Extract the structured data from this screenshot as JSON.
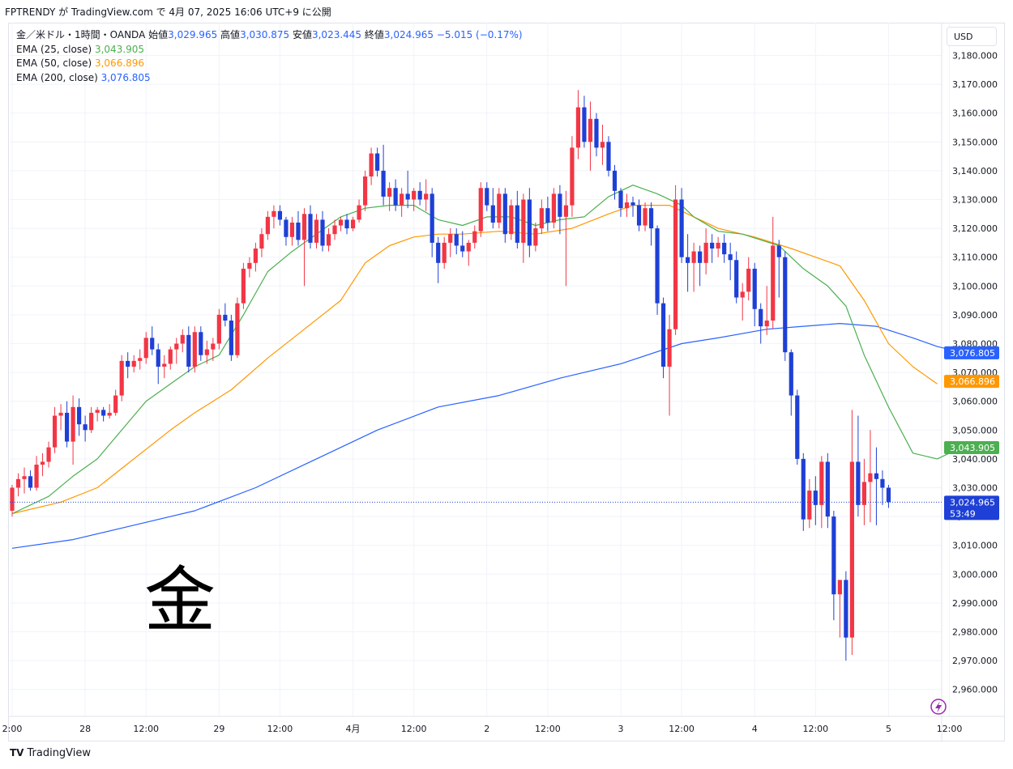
{
  "header": {
    "text": "FPTRENDY が TradingView.com で 4月 07, 2025 16:06 UTC+9 に公開"
  },
  "legend": {
    "symbol": "金／米ドル・1時間・OANDA",
    "open_label": "始値",
    "open": "3,029.965",
    "high_label": "高値",
    "high": "3,030.875",
    "low_label": "安値",
    "low": "3,023.445",
    "close_label": "終値",
    "close": "3,024.965",
    "change": "−5.015 (−0.17%)",
    "ema25_label": "EMA (25, close)",
    "ema25_value": "3,043.905",
    "ema50_label": "EMA (50, close)",
    "ema50_value": "3,066.896",
    "ema200_label": "EMA (200, close)",
    "ema200_value": "3,076.805"
  },
  "currency": "USD",
  "watermark": "金",
  "footer": {
    "logo_glyph": "TV",
    "brand": "TradingView"
  },
  "colors": {
    "up": "#f23645",
    "down": "#1e40d6",
    "ema25": "#4caf50",
    "ema50": "#ff9800",
    "ema200": "#2962ff"
  },
  "chart_data": {
    "type": "candlestick",
    "title": "金／米ドル・1時間・OANDA",
    "ylim": [
      2955,
      3185
    ],
    "y_ticks": [
      "3,180.000",
      "3,170.000",
      "3,160.000",
      "3,150.000",
      "3,140.000",
      "3,130.000",
      "3,120.000",
      "3,110.000",
      "3,100.000",
      "3,090.000",
      "3,080.000",
      "3,070.000",
      "3,060.000",
      "3,050.000",
      "3,040.000",
      "3,030.000",
      "3,020.000",
      "3,010.000",
      "3,000.000",
      "2,990.000",
      "2,980.000",
      "2,970.000",
      "2,960.000"
    ],
    "x_ticks": [
      {
        "label": "2:00",
        "bar": 0
      },
      {
        "label": "28",
        "bar": 12
      },
      {
        "label": "12:00",
        "bar": 22
      },
      {
        "label": "29",
        "bar": 34
      },
      {
        "label": "12:00",
        "bar": 44
      },
      {
        "label": "4月",
        "bar": 56
      },
      {
        "label": "12:00",
        "bar": 66
      },
      {
        "label": "2",
        "bar": 78
      },
      {
        "label": "12:00",
        "bar": 88
      },
      {
        "label": "3",
        "bar": 100
      },
      {
        "label": "12:00",
        "bar": 110
      },
      {
        "label": "4",
        "bar": 122
      },
      {
        "label": "12:00",
        "bar": 132
      },
      {
        "label": "5",
        "bar": 144
      },
      {
        "label": "12:00",
        "bar": 154
      }
    ],
    "last_price": {
      "value": 3024.965,
      "label": "3,024.965",
      "countdown": "53:49"
    },
    "ema_tags": [
      {
        "name": "EMA 200",
        "value": 3076.805,
        "label": "3,076.805"
      },
      {
        "name": "EMA 50",
        "value": 3066.896,
        "label": "3,066.896"
      },
      {
        "name": "EMA 25",
        "value": 3043.905,
        "label": "3,043.905"
      }
    ],
    "candles": [
      [
        3022,
        3031,
        3020,
        3030
      ],
      [
        3030,
        3035,
        3027,
        3033
      ],
      [
        3033,
        3037,
        3028,
        3034
      ],
      [
        3034,
        3036,
        3029,
        3030
      ],
      [
        3030,
        3041,
        3029,
        3038
      ],
      [
        3038,
        3042,
        3034,
        3039
      ],
      [
        3039,
        3046,
        3037,
        3044
      ],
      [
        3044,
        3058,
        3042,
        3055
      ],
      [
        3055,
        3059,
        3050,
        3056
      ],
      [
        3056,
        3060,
        3044,
        3046
      ],
      [
        3046,
        3062,
        3038,
        3058
      ],
      [
        3058,
        3061,
        3048,
        3052
      ],
      [
        3052,
        3055,
        3046,
        3050
      ],
      [
        3050,
        3058,
        3049,
        3056
      ],
      [
        3056,
        3058,
        3053,
        3057
      ],
      [
        3057,
        3058,
        3053,
        3055
      ],
      [
        3055,
        3059,
        3054,
        3056
      ],
      [
        3056,
        3064,
        3055,
        3062
      ],
      [
        3062,
        3076,
        3060,
        3074
      ],
      [
        3074,
        3077,
        3068,
        3072
      ],
      [
        3072,
        3076,
        3070,
        3074
      ],
      [
        3074,
        3078,
        3071,
        3075
      ],
      [
        3075,
        3084,
        3073,
        3082
      ],
      [
        3082,
        3086,
        3076,
        3078
      ],
      [
        3078,
        3080,
        3066,
        3072
      ],
      [
        3072,
        3076,
        3068,
        3073
      ],
      [
        3073,
        3079,
        3071,
        3078
      ],
      [
        3078,
        3082,
        3073,
        3080
      ],
      [
        3080,
        3085,
        3077,
        3083
      ],
      [
        3083,
        3086,
        3070,
        3072
      ],
      [
        3072,
        3086,
        3070,
        3084
      ],
      [
        3084,
        3086,
        3074,
        3076
      ],
      [
        3076,
        3081,
        3073,
        3078
      ],
      [
        3078,
        3082,
        3074,
        3080
      ],
      [
        3080,
        3092,
        3078,
        3090
      ],
      [
        3090,
        3094,
        3086,
        3088
      ],
      [
        3088,
        3090,
        3074,
        3076
      ],
      [
        3076,
        3096,
        3075,
        3094
      ],
      [
        3094,
        3108,
        3092,
        3106
      ],
      [
        3106,
        3110,
        3103,
        3108
      ],
      [
        3108,
        3115,
        3105,
        3113
      ],
      [
        3113,
        3120,
        3110,
        3118
      ],
      [
        3118,
        3126,
        3116,
        3124
      ],
      [
        3124,
        3128,
        3120,
        3126
      ],
      [
        3126,
        3128,
        3121,
        3123
      ],
      [
        3123,
        3124,
        3114,
        3117
      ],
      [
        3117,
        3124,
        3114,
        3122
      ],
      [
        3122,
        3126,
        3114,
        3116
      ],
      [
        3116,
        3127,
        3100,
        3125
      ],
      [
        3125,
        3128,
        3113,
        3115
      ],
      [
        3115,
        3125,
        3113,
        3123
      ],
      [
        3123,
        3126,
        3112,
        3114
      ],
      [
        3114,
        3120,
        3112,
        3118
      ],
      [
        3118,
        3123,
        3116,
        3121
      ],
      [
        3121,
        3124,
        3119,
        3123
      ],
      [
        3123,
        3125,
        3118,
        3120
      ],
      [
        3120,
        3124,
        3119,
        3123
      ],
      [
        3123,
        3130,
        3122,
        3128
      ],
      [
        3128,
        3140,
        3126,
        3138
      ],
      [
        3138,
        3148,
        3135,
        3146
      ],
      [
        3146,
        3148,
        3138,
        3140
      ],
      [
        3140,
        3149,
        3128,
        3131
      ],
      [
        3131,
        3136,
        3126,
        3134
      ],
      [
        3134,
        3137,
        3126,
        3128
      ],
      [
        3128,
        3134,
        3124,
        3132
      ],
      [
        3132,
        3140,
        3127,
        3130
      ],
      [
        3130,
        3134,
        3126,
        3133
      ],
      [
        3133,
        3136,
        3128,
        3130
      ],
      [
        3130,
        3137,
        3126,
        3132
      ],
      [
        3132,
        3134,
        3110,
        3115
      ],
      [
        3115,
        3117,
        3101,
        3108
      ],
      [
        3108,
        3117,
        3106,
        3115
      ],
      [
        3115,
        3120,
        3110,
        3118
      ],
      [
        3118,
        3120,
        3111,
        3114
      ],
      [
        3114,
        3119,
        3110,
        3112
      ],
      [
        3112,
        3116,
        3107,
        3115
      ],
      [
        3115,
        3121,
        3113,
        3119
      ],
      [
        3119,
        3136,
        3117,
        3134
      ],
      [
        3134,
        3136,
        3126,
        3128
      ],
      [
        3128,
        3134,
        3120,
        3122
      ],
      [
        3122,
        3134,
        3120,
        3132
      ],
      [
        3132,
        3134,
        3115,
        3118
      ],
      [
        3118,
        3130,
        3116,
        3128
      ],
      [
        3128,
        3133,
        3113,
        3115
      ],
      [
        3115,
        3132,
        3108,
        3130
      ],
      [
        3130,
        3134,
        3110,
        3114
      ],
      [
        3114,
        3122,
        3112,
        3120
      ],
      [
        3120,
        3130,
        3118,
        3127
      ],
      [
        3127,
        3131,
        3119,
        3122
      ],
      [
        3122,
        3134,
        3120,
        3132
      ],
      [
        3132,
        3135,
        3118,
        3124
      ],
      [
        3124,
        3133,
        3100,
        3128
      ],
      [
        3128,
        3152,
        3124,
        3148
      ],
      [
        3148,
        3168,
        3144,
        3162
      ],
      [
        3162,
        3166,
        3148,
        3150
      ],
      [
        3150,
        3164,
        3140,
        3158
      ],
      [
        3158,
        3160,
        3145,
        3148
      ],
      [
        3148,
        3156,
        3142,
        3150
      ],
      [
        3150,
        3152,
        3138,
        3140
      ],
      [
        3140,
        3142,
        3130,
        3133
      ],
      [
        3133,
        3134,
        3124,
        3127
      ],
      [
        3127,
        3132,
        3124,
        3129
      ],
      [
        3129,
        3131,
        3124,
        3128
      ],
      [
        3128,
        3130,
        3119,
        3121
      ],
      [
        3121,
        3129,
        3119,
        3127
      ],
      [
        3127,
        3129,
        3114,
        3120
      ],
      [
        3120,
        3121,
        3090,
        3094
      ],
      [
        3094,
        3096,
        3068,
        3072
      ],
      [
        3072,
        3090,
        3055,
        3085
      ],
      [
        3085,
        3135,
        3083,
        3130
      ],
      [
        3130,
        3134,
        3108,
        3110
      ],
      [
        3110,
        3118,
        3098,
        3108
      ],
      [
        3108,
        3115,
        3098,
        3112
      ],
      [
        3112,
        3114,
        3100,
        3108
      ],
      [
        3108,
        3120,
        3104,
        3115
      ],
      [
        3115,
        3118,
        3108,
        3113
      ],
      [
        3113,
        3117,
        3110,
        3115
      ],
      [
        3115,
        3118,
        3108,
        3111
      ],
      [
        3111,
        3115,
        3102,
        3109
      ],
      [
        3109,
        3112,
        3094,
        3096
      ],
      [
        3096,
        3101,
        3088,
        3098
      ],
      [
        3098,
        3110,
        3095,
        3106
      ],
      [
        3106,
        3108,
        3086,
        3092
      ],
      [
        3092,
        3094,
        3080,
        3086
      ],
      [
        3086,
        3100,
        3083,
        3088
      ],
      [
        3088,
        3124,
        3085,
        3114
      ],
      [
        3114,
        3116,
        3096,
        3110
      ],
      [
        3110,
        3112,
        3074,
        3077
      ],
      [
        3077,
        3078,
        3055,
        3062
      ],
      [
        3062,
        3064,
        3038,
        3040
      ],
      [
        3040,
        3042,
        3015,
        3019
      ],
      [
        3019,
        3033,
        3016,
        3029
      ],
      [
        3029,
        3034,
        3017,
        3024
      ],
      [
        3024,
        3041,
        3016,
        3039
      ],
      [
        3039,
        3042,
        3016,
        3020
      ],
      [
        3020,
        3022,
        2984,
        2993
      ],
      [
        2993,
        2996,
        2978,
        2998
      ],
      [
        2998,
        3001,
        2970,
        2978
      ],
      [
        2978,
        3057,
        2972,
        3039
      ],
      [
        3039,
        3055,
        3020,
        3024
      ],
      [
        3024,
        3040,
        3017,
        3032
      ],
      [
        3032,
        3050,
        3018,
        3035
      ],
      [
        3035,
        3044,
        3017,
        3033
      ],
      [
        3033,
        3036,
        3024,
        3030
      ],
      [
        3030,
        3031,
        3023,
        3025
      ]
    ],
    "ema25": [
      [
        0,
        3021
      ],
      [
        6,
        3027
      ],
      [
        10,
        3034
      ],
      [
        14,
        3040
      ],
      [
        18,
        3050
      ],
      [
        22,
        3060
      ],
      [
        26,
        3066
      ],
      [
        30,
        3072
      ],
      [
        34,
        3076
      ],
      [
        38,
        3090
      ],
      [
        42,
        3105
      ],
      [
        46,
        3112
      ],
      [
        50,
        3118
      ],
      [
        54,
        3124
      ],
      [
        58,
        3127
      ],
      [
        62,
        3128
      ],
      [
        66,
        3128
      ],
      [
        70,
        3123
      ],
      [
        74,
        3121
      ],
      [
        78,
        3124
      ],
      [
        82,
        3124
      ],
      [
        86,
        3121
      ],
      [
        90,
        3123
      ],
      [
        94,
        3124
      ],
      [
        98,
        3131
      ],
      [
        102,
        3135
      ],
      [
        106,
        3132
      ],
      [
        110,
        3128
      ],
      [
        112,
        3124
      ],
      [
        116,
        3119
      ],
      [
        120,
        3118
      ],
      [
        126,
        3114
      ],
      [
        130,
        3106
      ],
      [
        134,
        3100
      ],
      [
        137,
        3093
      ],
      [
        140,
        3076
      ],
      [
        144,
        3058
      ],
      [
        148,
        3042
      ],
      [
        152,
        3040
      ],
      [
        156,
        3044
      ]
    ],
    "ema50": [
      [
        0,
        3021
      ],
      [
        8,
        3025
      ],
      [
        14,
        3030
      ],
      [
        20,
        3040
      ],
      [
        26,
        3050
      ],
      [
        30,
        3056
      ],
      [
        36,
        3064
      ],
      [
        42,
        3075
      ],
      [
        48,
        3085
      ],
      [
        54,
        3095
      ],
      [
        58,
        3108
      ],
      [
        62,
        3114
      ],
      [
        66,
        3117
      ],
      [
        70,
        3118
      ],
      [
        74,
        3118
      ],
      [
        80,
        3119
      ],
      [
        86,
        3118
      ],
      [
        92,
        3120
      ],
      [
        98,
        3125
      ],
      [
        102,
        3128
      ],
      [
        108,
        3128
      ],
      [
        112,
        3124
      ],
      [
        116,
        3120
      ],
      [
        122,
        3117
      ],
      [
        128,
        3113
      ],
      [
        132,
        3110
      ],
      [
        136,
        3107
      ],
      [
        140,
        3095
      ],
      [
        144,
        3080
      ],
      [
        148,
        3072
      ],
      [
        152,
        3066
      ]
    ],
    "ema200": [
      [
        0,
        3009
      ],
      [
        10,
        3012
      ],
      [
        20,
        3017
      ],
      [
        30,
        3022
      ],
      [
        40,
        3030
      ],
      [
        50,
        3040
      ],
      [
        60,
        3050
      ],
      [
        70,
        3058
      ],
      [
        80,
        3062
      ],
      [
        90,
        3068
      ],
      [
        100,
        3073
      ],
      [
        110,
        3080
      ],
      [
        116,
        3082
      ],
      [
        124,
        3085
      ],
      [
        130,
        3086
      ],
      [
        136,
        3087
      ],
      [
        142,
        3086
      ],
      [
        148,
        3082
      ],
      [
        152,
        3079
      ],
      [
        156,
        3077
      ]
    ]
  }
}
